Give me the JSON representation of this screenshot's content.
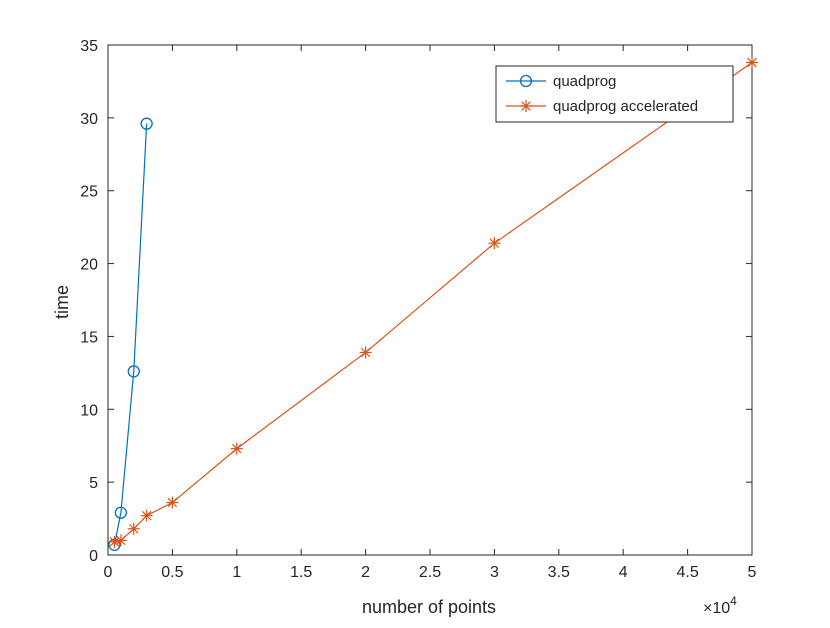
{
  "chart_data": {
    "type": "line",
    "title": "",
    "xlabel": "number of points",
    "ylabel": "time",
    "x_exponent_label": "×10",
    "x_exponent_power": "4",
    "xlim": [
      0,
      50000
    ],
    "ylim": [
      0,
      35
    ],
    "grid": false,
    "legend_position": "top-right",
    "x_ticks": [
      0,
      5000,
      10000,
      15000,
      20000,
      25000,
      30000,
      35000,
      40000,
      45000,
      50000
    ],
    "x_tick_labels": [
      "0",
      "0.5",
      "1",
      "1.5",
      "2",
      "2.5",
      "3",
      "3.5",
      "4",
      "4.5",
      "5"
    ],
    "y_ticks": [
      0,
      5,
      10,
      15,
      20,
      25,
      30,
      35
    ],
    "y_tick_labels": [
      "0",
      "5",
      "10",
      "15",
      "20",
      "25",
      "30",
      "35"
    ],
    "series": [
      {
        "name": "quadprog",
        "color": "#0072BD",
        "marker": "circle",
        "x": [
          500,
          1000,
          2000,
          3000
        ],
        "y": [
          0.7,
          2.9,
          12.6,
          29.6
        ]
      },
      {
        "name": "quadprog accelerated",
        "color": "#D95319",
        "marker": "asterisk",
        "x": [
          500,
          1000,
          2000,
          3000,
          5000,
          10000,
          20000,
          30000,
          50000
        ],
        "y": [
          0.9,
          1.0,
          1.8,
          2.7,
          3.6,
          7.3,
          13.9,
          21.4,
          33.8
        ]
      }
    ]
  }
}
